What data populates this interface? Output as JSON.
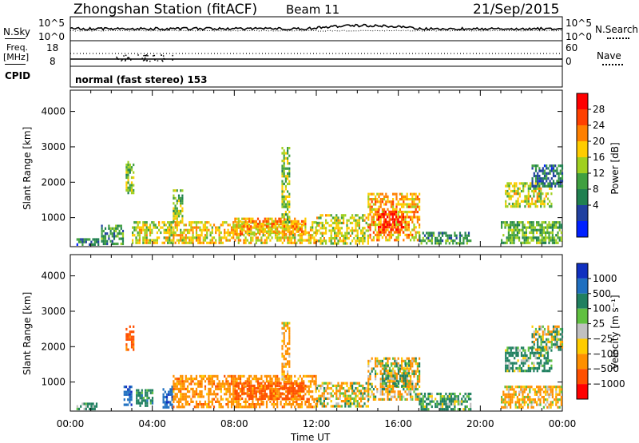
{
  "header": {
    "station": "Zhongshan Station (fitACF)",
    "beam": "Beam 11",
    "date": "21/Sep/2015"
  },
  "sky_panel": {
    "left_label": "N.Sky",
    "left_top": "10^5",
    "left_bottom": "10^0",
    "right_top": "10^5",
    "right_bottom": "10^0",
    "right_label": "N.Search"
  },
  "freq_panel": {
    "left_label_1": "Freq.",
    "left_label_2": "[MHz]",
    "left_top": "18",
    "left_bottom": "8",
    "right_top": "60",
    "right_bottom": "0",
    "right_label": "Nave"
  },
  "cpid_panel": {
    "label": "CPID",
    "text": "normal (fast stereo) 153"
  },
  "x_axis": {
    "title": "Time UT",
    "ticks": [
      "00:00",
      "04:00",
      "08:00",
      "12:00",
      "16:00",
      "20:00",
      "00:00"
    ]
  },
  "power_colorbar": {
    "title": "Power [dB]",
    "labels": [
      "28",
      "24",
      "20",
      "16",
      "12",
      "8",
      "4"
    ],
    "colors": [
      "#ff0000",
      "#ff4000",
      "#ff8000",
      "#ffcc00",
      "#a0d020",
      "#40a040",
      "#208050",
      "#2040a0",
      "#0020ff"
    ]
  },
  "velocity_colorbar": {
    "title": "Velocity [m s⁻¹]",
    "labels": [
      "1000",
      "500",
      "100",
      "25",
      "−25",
      "−100",
      "−500",
      "−1000"
    ],
    "colors": [
      "#1030c0",
      "#2070c0",
      "#208060",
      "#60c040",
      "#c0c0c0",
      "#ffcc00",
      "#ff9000",
      "#ff5000",
      "#ff0000"
    ]
  },
  "chart_data": [
    {
      "type": "heatmap",
      "quantity": "Power",
      "ylabel": "Slant Range [km]",
      "xlabel": "",
      "ylim": [
        180,
        4600
      ],
      "xlim_hours": [
        0,
        24
      ],
      "yticks": [
        1000,
        2000,
        3000,
        4000
      ],
      "zrange": [
        0,
        30
      ],
      "patches": [
        {
          "t0": 0.3,
          "t1": 1.4,
          "r0": 250,
          "r1": 420,
          "value": 8
        },
        {
          "t0": 1.5,
          "t1": 2.6,
          "r0": 250,
          "r1": 800,
          "value": 10
        },
        {
          "t0": 2.7,
          "t1": 3.1,
          "r0": 1700,
          "r1": 2600,
          "value": 14
        },
        {
          "t0": 3.0,
          "t1": 5.0,
          "r0": 300,
          "r1": 900,
          "value": 16
        },
        {
          "t0": 5.0,
          "t1": 12.0,
          "r0": 300,
          "r1": 900,
          "value": 18
        },
        {
          "t0": 5.0,
          "t1": 5.5,
          "r0": 900,
          "r1": 1800,
          "value": 14
        },
        {
          "t0": 8.0,
          "t1": 11.5,
          "r0": 500,
          "r1": 1000,
          "value": 20
        },
        {
          "t0": 10.3,
          "t1": 10.7,
          "r0": 900,
          "r1": 3000,
          "value": 14
        },
        {
          "t0": 12.0,
          "t1": 14.5,
          "r0": 300,
          "r1": 1100,
          "value": 16
        },
        {
          "t0": 14.5,
          "t1": 17.0,
          "r0": 400,
          "r1": 1700,
          "value": 20
        },
        {
          "t0": 15.0,
          "t1": 16.2,
          "r0": 600,
          "r1": 1200,
          "value": 27
        },
        {
          "t0": 17.0,
          "t1": 19.5,
          "r0": 250,
          "r1": 600,
          "value": 10
        },
        {
          "t0": 21.0,
          "t1": 24.0,
          "r0": 300,
          "r1": 900,
          "value": 12
        },
        {
          "t0": 21.2,
          "t1": 23.5,
          "r0": 1300,
          "r1": 2000,
          "value": 16
        },
        {
          "t0": 22.5,
          "t1": 24.0,
          "r0": 1900,
          "r1": 2500,
          "value": 8
        }
      ]
    },
    {
      "type": "heatmap",
      "quantity": "Velocity",
      "ylabel": "Slant Range [km]",
      "xlabel": "Time UT",
      "ylim": [
        180,
        4600
      ],
      "xlim_hours": [
        0,
        24
      ],
      "yticks": [
        1000,
        2000,
        3000,
        4000
      ],
      "zrange": [
        -1000,
        1000
      ],
      "patches": [
        {
          "t0": 0.3,
          "t1": 1.4,
          "r0": 250,
          "r1": 420,
          "value": 200
        },
        {
          "t0": 2.6,
          "t1": 3.0,
          "r0": 350,
          "r1": 900,
          "value": 800
        },
        {
          "t0": 2.7,
          "t1": 3.1,
          "r0": 1900,
          "r1": 2600,
          "value": -600
        },
        {
          "t0": 3.2,
          "t1": 4.0,
          "r0": 300,
          "r1": 800,
          "value": 300
        },
        {
          "t0": 4.5,
          "t1": 5.0,
          "r0": 300,
          "r1": 900,
          "value": 800
        },
        {
          "t0": 5.0,
          "t1": 12.0,
          "r0": 300,
          "r1": 1200,
          "value": -300
        },
        {
          "t0": 8.0,
          "t1": 11.5,
          "r0": 500,
          "r1": 1000,
          "value": -700
        },
        {
          "t0": 10.3,
          "t1": 10.7,
          "r0": 1000,
          "r1": 2700,
          "value": -200
        },
        {
          "t0": 12.0,
          "t1": 14.5,
          "r0": 300,
          "r1": 1000,
          "value": -80
        },
        {
          "t0": 14.5,
          "t1": 17.0,
          "r0": 500,
          "r1": 1700,
          "value": -80
        },
        {
          "t0": 15.2,
          "t1": 16.5,
          "r0": 900,
          "r1": 1500,
          "value": 60
        },
        {
          "t0": 17.0,
          "t1": 19.5,
          "r0": 250,
          "r1": 700,
          "value": 150
        },
        {
          "t0": 21.0,
          "t1": 24.0,
          "r0": 300,
          "r1": 900,
          "value": -150
        },
        {
          "t0": 21.2,
          "t1": 23.5,
          "r0": 1300,
          "r1": 2000,
          "value": 200
        },
        {
          "t0": 22.5,
          "t1": 24.0,
          "r0": 1900,
          "r1": 2600,
          "value": 15
        }
      ]
    }
  ]
}
